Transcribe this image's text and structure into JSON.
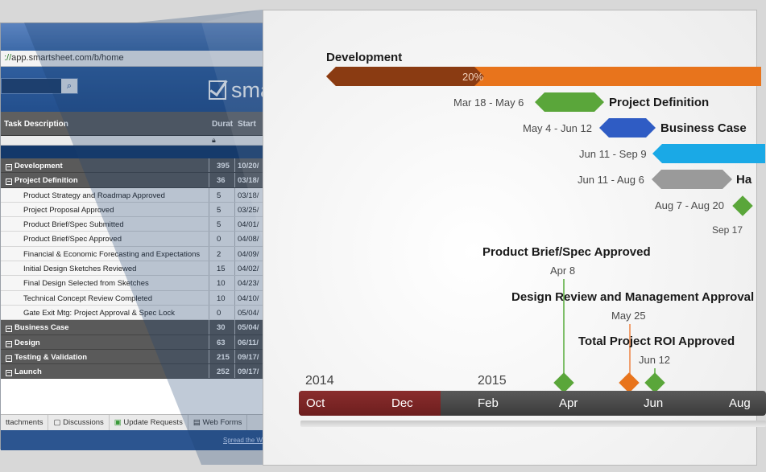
{
  "sheet": {
    "url_scheme": "://",
    "url_rest": "app.smartsheet.com/b/home",
    "search_icon": "search-icon",
    "logo_text": "sma",
    "columns": {
      "task": "Task Description",
      "duration": "Durat",
      "start": "Start"
    },
    "lock_icon": "lock-icon",
    "rows": [
      {
        "kind": "group",
        "desc": "Development",
        "dur": "395",
        "start": "10/20/"
      },
      {
        "kind": "group",
        "desc": "Project Definition",
        "dur": "36",
        "start": "03/18/"
      },
      {
        "kind": "task",
        "desc": "Product Strategy and Roadmap Approved",
        "dur": "5",
        "start": "03/18/"
      },
      {
        "kind": "task",
        "desc": "Project Proposal Approved",
        "dur": "5",
        "start": "03/25/"
      },
      {
        "kind": "task",
        "desc": "Product Brief/Spec Submitted",
        "dur": "5",
        "start": "04/01/"
      },
      {
        "kind": "task",
        "desc": "Product Brief/Spec Approved",
        "dur": "0",
        "start": "04/08/"
      },
      {
        "kind": "task",
        "desc": "Financial & Economic Forecasting and Expectations",
        "dur": "2",
        "start": "04/09/"
      },
      {
        "kind": "task",
        "desc": "Initial Design Sketches Reviewed",
        "dur": "15",
        "start": "04/02/"
      },
      {
        "kind": "task",
        "desc": "Final Design Selected from Sketches",
        "dur": "10",
        "start": "04/23/"
      },
      {
        "kind": "task",
        "desc": "Technical Concept Review Completed",
        "dur": "10",
        "start": "04/10/"
      },
      {
        "kind": "task",
        "desc": "Gate Exit Mtg: Project Approval & Spec Lock",
        "dur": "0",
        "start": "05/04/"
      },
      {
        "kind": "group",
        "desc": "Business Case",
        "dur": "30",
        "start": "05/04/"
      },
      {
        "kind": "group",
        "desc": "Design",
        "dur": "63",
        "start": "06/11/"
      },
      {
        "kind": "group",
        "desc": "Testing & Validation",
        "dur": "215",
        "start": "09/17/"
      },
      {
        "kind": "group",
        "desc": "Launch",
        "dur": "252",
        "start": "09/17/"
      }
    ],
    "tabs": [
      "ttachments",
      "Discussions",
      "Update Requests",
      "Web Forms"
    ],
    "footer_link": "Spread the W"
  },
  "timeline": {
    "development": {
      "label": "Development",
      "progress_text": "20%",
      "progress": 0.2,
      "color": "#e8741c",
      "done_color": "#8a3b12"
    },
    "tasks": [
      {
        "dates": "Mar 18 - May 6",
        "label": "Project Definition",
        "color": "#5aa63a"
      },
      {
        "dates": "May 4 - Jun 12",
        "label": "Business Case",
        "color": "#2f5cc4"
      },
      {
        "dates": "Jun 11 - Sep 9",
        "label": "",
        "color": "#1aa9e6"
      },
      {
        "dates": "Jun 11 - Aug 6",
        "label": "Ha",
        "color": "#9a9a9a"
      },
      {
        "dates": "Aug 7 - Aug 20",
        "label": "",
        "color": "#5aa63a"
      },
      {
        "dates": "Sep 17",
        "label": "",
        "color": "#5aa63a"
      }
    ],
    "milestones": [
      {
        "label": "Product Brief/Spec Approved",
        "date": "Apr 8",
        "color": "#5aa63a"
      },
      {
        "label": "Design Review and Management Approval",
        "date": "May 25",
        "color": "#e8741c"
      },
      {
        "label": "Total Project ROI Approved",
        "date": "Jun 12",
        "color": "#5aa63a"
      }
    ],
    "years": [
      "2014",
      "2015"
    ],
    "months": [
      "Oct",
      "Dec",
      "Feb",
      "Apr",
      "Jun",
      "Aug"
    ]
  }
}
